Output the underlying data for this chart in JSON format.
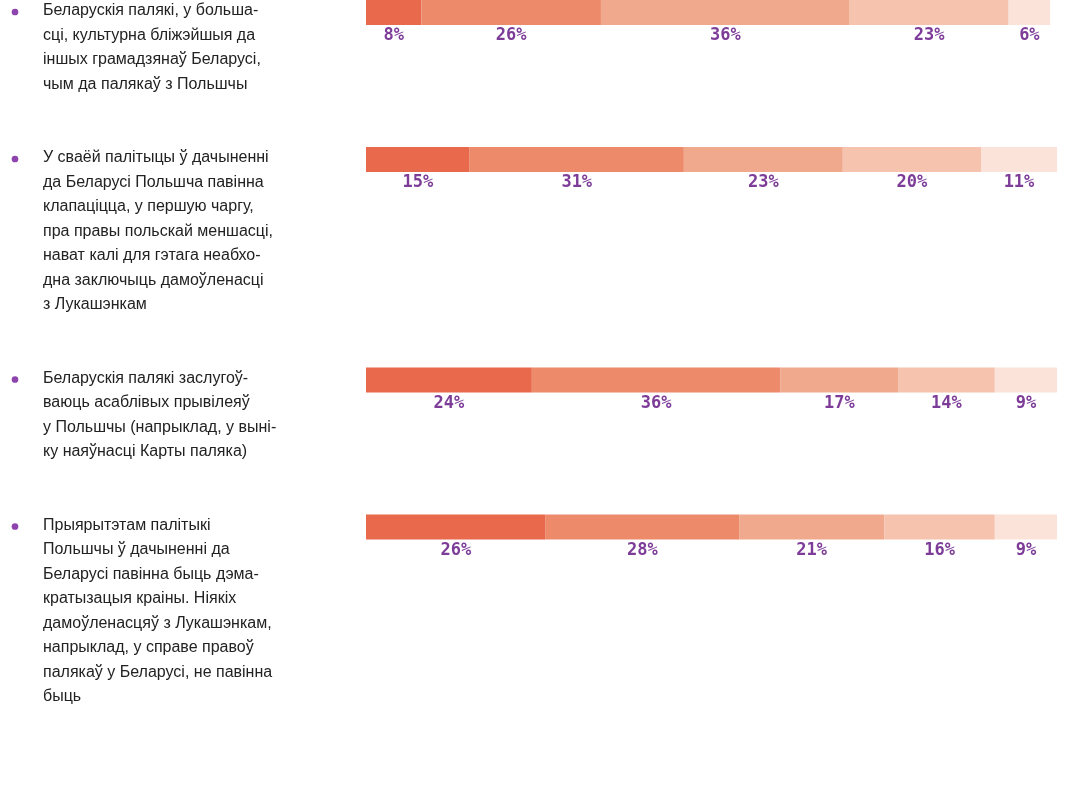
{
  "chart_data": {
    "type": "bar",
    "orientation": "horizontal",
    "stacked": true,
    "categories": [
      "Беларускія палякі, у больша-\nсці, культурна бліжэйшыя да\nіншых грамадзянаў Беларусі,\nчым да палякаў з Польшчы",
      "У сваёй палітыцы ў дачыненні\nда Беларусі Польшча павінна\nклапаціцца, у першую чаргу,\nпра правы польскай меншасці,\nнават калі для гэтага неабхо-\nдна заключыць дамоўленасці\nз Лукашэнкам",
      "Беларускія палякі заслугоў-\nваюць асаблівых прывілеяў\nу Польшчы (напрыклад, у вынi-\nку наяўнасці Карты паляка)",
      "Прыярытэтам палітыкі\nПольшчы ў дачыненні да\nБеларусі павінна быць дэма-\nкратызацыя краіны. Ніякіх\nдамоўленасцяў з Лукашэнкам,\nнапрыклад, у справе правоў\nпалякаў у Беларусі, не павінна\nбыць"
    ],
    "series": [
      {
        "color": "#e8694b",
        "values": [
          8,
          15,
          24,
          26
        ],
        "value_labels": [
          "8%",
          "15%",
          "24%",
          "26%"
        ]
      },
      {
        "color": "#ec8a6a",
        "values": [
          26,
          31,
          36,
          28
        ],
        "value_labels": [
          "26%",
          "31%",
          "36%",
          "28%"
        ]
      },
      {
        "color": "#f0a98c",
        "values": [
          36,
          23,
          17,
          21
        ],
        "value_labels": [
          "36%",
          "23%",
          "17%",
          "21%"
        ]
      },
      {
        "color": "#f5c3ae",
        "values": [
          23,
          20,
          14,
          16
        ],
        "value_labels": [
          "23%",
          "20%",
          "14%",
          "16%"
        ]
      },
      {
        "color": "#fbe3d9",
        "values": [
          6,
          11,
          9,
          9
        ],
        "value_labels": [
          "6%",
          "11%",
          "9%",
          "9%"
        ]
      }
    ]
  }
}
